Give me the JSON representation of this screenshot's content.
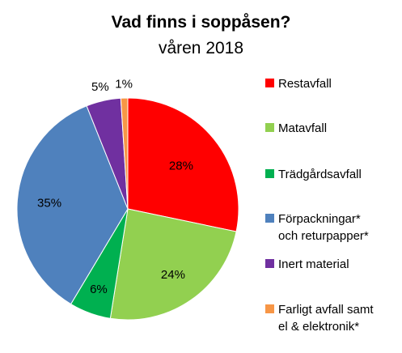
{
  "chart_data": {
    "type": "pie",
    "title": "Vad finns i soppåsen?",
    "subtitle": "våren 2018",
    "categories": [
      "Restavfall",
      "Matavfall",
      "Trädgårdsavfall",
      [
        "Förpackningar*",
        "och returpapper*"
      ],
      "Inert material",
      [
        "Farligt avfall samt",
        "el & elektronik*"
      ]
    ],
    "values": [
      28,
      24,
      6,
      35,
      5,
      1
    ],
    "value_labels": [
      "28%",
      "24%",
      "6%",
      "35%",
      "5%",
      "1%"
    ],
    "colors": [
      "#FF0000",
      "#92D050",
      "#00B050",
      "#4F81BD",
      "#7030A0",
      "#F79646"
    ],
    "start_angle_deg": 0,
    "direction": "clockwise",
    "legend_position": "right"
  }
}
